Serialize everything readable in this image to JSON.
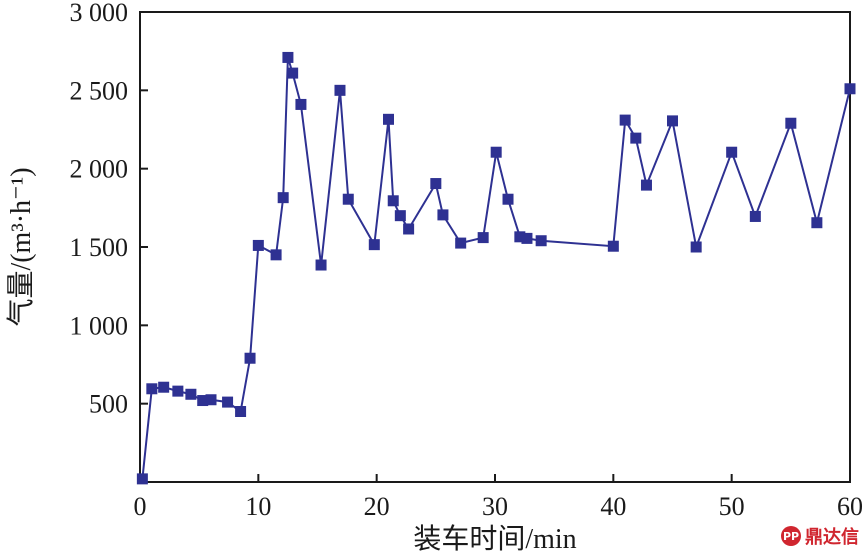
{
  "chart_data": {
    "type": "line",
    "title": "",
    "xlabel": "装车时间/min",
    "ylabel": "气量/(m³·h⁻¹)",
    "xlim": [
      0,
      60
    ],
    "ylim": [
      0,
      3000
    ],
    "xticks": [
      0,
      10,
      20,
      30,
      40,
      50,
      60
    ],
    "xtick_labels": [
      "0",
      "10",
      "20",
      "30",
      "40",
      "50",
      "60"
    ],
    "yticks": [
      500,
      1000,
      1500,
      2000,
      2500,
      3000
    ],
    "ytick_labels": [
      "500",
      "1 000",
      "1 500",
      "2 000",
      "2 500",
      "3 000"
    ],
    "grid": false,
    "legend": "none",
    "series_color": "#2e3192",
    "marker": "square",
    "series": [
      {
        "x": [
          0.2,
          1.0,
          2.0,
          3.2,
          4.3,
          5.3,
          6.0,
          7.4,
          8.5,
          9.3,
          10.0,
          11.5,
          12.1,
          12.5,
          12.9,
          13.6,
          15.3,
          16.9,
          17.6,
          19.8,
          21.0,
          21.4,
          22.0,
          22.7,
          25.0,
          25.6,
          27.1,
          29.0,
          30.1,
          31.1,
          32.1,
          32.7,
          33.9,
          40.0,
          41.0,
          41.9,
          42.8,
          45.0,
          47.0,
          50.0,
          52.0,
          55.0,
          57.2,
          60.0
        ],
        "y": [
          20,
          595,
          605,
          580,
          560,
          520,
          525,
          510,
          450,
          790,
          1510,
          1450,
          1815,
          2710,
          2610,
          2410,
          1385,
          2500,
          1805,
          1515,
          2315,
          1795,
          1700,
          1615,
          1905,
          1705,
          1525,
          1560,
          2105,
          1805,
          1565,
          1555,
          1540,
          1505,
          2310,
          2195,
          1895,
          2305,
          1500,
          2105,
          1695,
          2290,
          1655,
          2510
        ]
      }
    ]
  },
  "watermark": {
    "logo_text": "PP",
    "text": "鼎达信"
  }
}
